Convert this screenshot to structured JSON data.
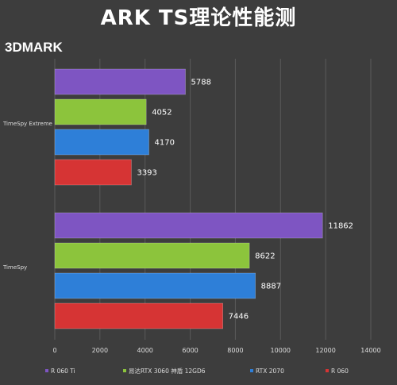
{
  "title": "ARK TS理论性能测",
  "brand": "3DMARK",
  "chart_data": {
    "type": "bar",
    "orientation": "horizontal",
    "categories": [
      "TimeSpy Extreme",
      "TimeSpy"
    ],
    "series": [
      {
        "name": "R 060 Ti",
        "color": "#7e55c2",
        "values": [
          5788,
          11862
        ]
      },
      {
        "name": "昂达RTX 3060 神盾 12GD6",
        "color": "#8cc43c",
        "values": [
          4052,
          8622
        ]
      },
      {
        "name": "RTX 2070",
        "color": "#2e7fd8",
        "values": [
          4170,
          8887
        ]
      },
      {
        "name": "R 060",
        "color": "#d63434",
        "values": [
          3393,
          7446
        ]
      }
    ],
    "xlim": [
      0,
      14000
    ],
    "xticks": [
      0,
      2000,
      4000,
      6000,
      8000,
      10000,
      12000,
      14000
    ],
    "grid": true,
    "legend": "bottom"
  }
}
